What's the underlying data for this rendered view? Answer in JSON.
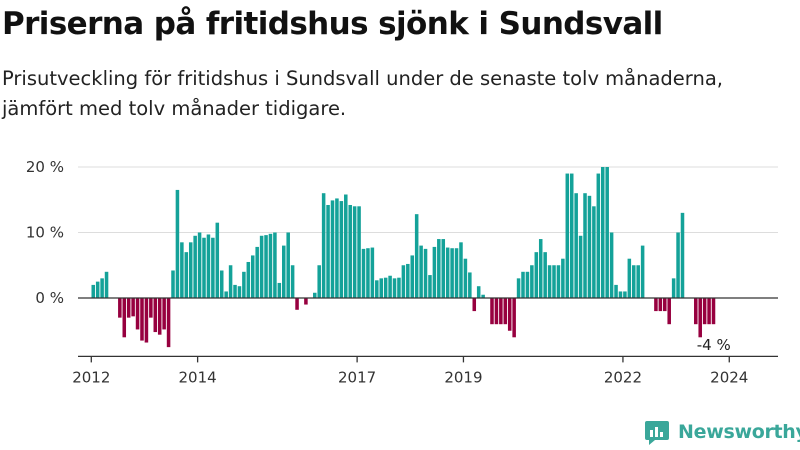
{
  "header": {
    "title": "Priserna på fritidshus sjönk i Sundsvall",
    "subtitle": "Prisutveckling för fritidshus i Sundsvall under de senaste tolv månaderna, jämfört med tolv månader tidigare."
  },
  "logo": {
    "name": "Newsworthy",
    "icon": "newsworthy-chart-icon"
  },
  "colors": {
    "positive": "#14a299",
    "negative": "#97003f",
    "grid": "#dddddd",
    "axis": "#333333",
    "text": "#333333"
  },
  "chart_data": {
    "type": "bar",
    "title": "Priserna på fritidshus sjönk i Sundsvall",
    "xlabel": "",
    "ylabel": "",
    "ylim": [
      -8,
      20
    ],
    "y_ticks": [
      0,
      10,
      20
    ],
    "y_tick_labels": [
      "0 %",
      "10 %",
      "20 %"
    ],
    "x_range": [
      "2011-10",
      "2024-12"
    ],
    "x_ticks": [
      "2012-01",
      "2014-01",
      "2017-01",
      "2019-01",
      "2022-01",
      "2024-01"
    ],
    "x_tick_labels": [
      "2012",
      "2014",
      "2017",
      "2019",
      "2022",
      "2024"
    ],
    "grid": true,
    "end_label": "-4 %",
    "series": [
      {
        "values": [
          {
            "x": "2012-01",
            "y": 2.0
          },
          {
            "x": "2012-02",
            "y": 2.5
          },
          {
            "x": "2012-03",
            "y": 3.0
          },
          {
            "x": "2012-04",
            "y": 4.0
          },
          {
            "x": "2012-07",
            "y": -3.0
          },
          {
            "x": "2012-08",
            "y": -6.0
          },
          {
            "x": "2012-09",
            "y": -3.0
          },
          {
            "x": "2012-10",
            "y": -2.8
          },
          {
            "x": "2012-11",
            "y": -4.8
          },
          {
            "x": "2012-12",
            "y": -6.5
          },
          {
            "x": "2013-01",
            "y": -6.8
          },
          {
            "x": "2013-02",
            "y": -3.0
          },
          {
            "x": "2013-03",
            "y": -5.2
          },
          {
            "x": "2013-04",
            "y": -5.6
          },
          {
            "x": "2013-05",
            "y": -4.8
          },
          {
            "x": "2013-06",
            "y": -7.5
          },
          {
            "x": "2013-07",
            "y": 4.2
          },
          {
            "x": "2013-08",
            "y": 16.5
          },
          {
            "x": "2013-09",
            "y": 8.5
          },
          {
            "x": "2013-10",
            "y": 7.0
          },
          {
            "x": "2013-11",
            "y": 8.5
          },
          {
            "x": "2013-12",
            "y": 9.5
          },
          {
            "x": "2014-01",
            "y": 10.0
          },
          {
            "x": "2014-02",
            "y": 9.2
          },
          {
            "x": "2014-03",
            "y": 9.7
          },
          {
            "x": "2014-04",
            "y": 9.2
          },
          {
            "x": "2014-05",
            "y": 11.5
          },
          {
            "x": "2014-06",
            "y": 4.2
          },
          {
            "x": "2014-07",
            "y": 1.0
          },
          {
            "x": "2014-08",
            "y": 5.0
          },
          {
            "x": "2014-09",
            "y": 2.0
          },
          {
            "x": "2014-10",
            "y": 1.8
          },
          {
            "x": "2014-11",
            "y": 4.0
          },
          {
            "x": "2014-12",
            "y": 5.5
          },
          {
            "x": "2015-01",
            "y": 6.5
          },
          {
            "x": "2015-02",
            "y": 7.8
          },
          {
            "x": "2015-03",
            "y": 9.5
          },
          {
            "x": "2015-04",
            "y": 9.6
          },
          {
            "x": "2015-05",
            "y": 9.8
          },
          {
            "x": "2015-06",
            "y": 10.0
          },
          {
            "x": "2015-07",
            "y": 2.3
          },
          {
            "x": "2015-08",
            "y": 8.0
          },
          {
            "x": "2015-09",
            "y": 10.0
          },
          {
            "x": "2015-10",
            "y": 5.0
          },
          {
            "x": "2015-11",
            "y": -1.8
          },
          {
            "x": "2016-01",
            "y": -1.0
          },
          {
            "x": "2016-03",
            "y": 0.8
          },
          {
            "x": "2016-04",
            "y": 5.0
          },
          {
            "x": "2016-05",
            "y": 16.0
          },
          {
            "x": "2016-06",
            "y": 14.2
          },
          {
            "x": "2016-07",
            "y": 14.9
          },
          {
            "x": "2016-08",
            "y": 15.2
          },
          {
            "x": "2016-09",
            "y": 14.8
          },
          {
            "x": "2016-10",
            "y": 15.8
          },
          {
            "x": "2016-11",
            "y": 14.2
          },
          {
            "x": "2016-12",
            "y": 14.0
          },
          {
            "x": "2017-01",
            "y": 14.0
          },
          {
            "x": "2017-02",
            "y": 7.5
          },
          {
            "x": "2017-03",
            "y": 7.6
          },
          {
            "x": "2017-04",
            "y": 7.7
          },
          {
            "x": "2017-05",
            "y": 2.7
          },
          {
            "x": "2017-06",
            "y": 3.0
          },
          {
            "x": "2017-07",
            "y": 3.1
          },
          {
            "x": "2017-08",
            "y": 3.4
          },
          {
            "x": "2017-09",
            "y": 3.0
          },
          {
            "x": "2017-10",
            "y": 3.1
          },
          {
            "x": "2017-11",
            "y": 5.0
          },
          {
            "x": "2017-12",
            "y": 5.2
          },
          {
            "x": "2018-01",
            "y": 6.5
          },
          {
            "x": "2018-02",
            "y": 12.8
          },
          {
            "x": "2018-03",
            "y": 8.0
          },
          {
            "x": "2018-04",
            "y": 7.5
          },
          {
            "x": "2018-05",
            "y": 3.5
          },
          {
            "x": "2018-06",
            "y": 7.8
          },
          {
            "x": "2018-07",
            "y": 9.0
          },
          {
            "x": "2018-08",
            "y": 9.0
          },
          {
            "x": "2018-09",
            "y": 7.7
          },
          {
            "x": "2018-10",
            "y": 7.6
          },
          {
            "x": "2018-11",
            "y": 7.6
          },
          {
            "x": "2018-12",
            "y": 8.5
          },
          {
            "x": "2019-01",
            "y": 6.0
          },
          {
            "x": "2019-02",
            "y": 3.9
          },
          {
            "x": "2019-03",
            "y": -2.0
          },
          {
            "x": "2019-04",
            "y": 1.8
          },
          {
            "x": "2019-05",
            "y": 0.5
          },
          {
            "x": "2019-07",
            "y": -4.0
          },
          {
            "x": "2019-08",
            "y": -4.0
          },
          {
            "x": "2019-09",
            "y": -4.0
          },
          {
            "x": "2019-10",
            "y": -4.0
          },
          {
            "x": "2019-11",
            "y": -5.0
          },
          {
            "x": "2019-12",
            "y": -6.0
          },
          {
            "x": "2020-01",
            "y": 3.0
          },
          {
            "x": "2020-02",
            "y": 4.0
          },
          {
            "x": "2020-03",
            "y": 4.0
          },
          {
            "x": "2020-04",
            "y": 5.0
          },
          {
            "x": "2020-05",
            "y": 7.0
          },
          {
            "x": "2020-06",
            "y": 9.0
          },
          {
            "x": "2020-07",
            "y": 7.0
          },
          {
            "x": "2020-08",
            "y": 5.0
          },
          {
            "x": "2020-09",
            "y": 5.0
          },
          {
            "x": "2020-10",
            "y": 5.0
          },
          {
            "x": "2020-11",
            "y": 6.0
          },
          {
            "x": "2020-12",
            "y": 19.0
          },
          {
            "x": "2021-01",
            "y": 19.0
          },
          {
            "x": "2021-02",
            "y": 16.0
          },
          {
            "x": "2021-03",
            "y": 9.5
          },
          {
            "x": "2021-04",
            "y": 16.0
          },
          {
            "x": "2021-05",
            "y": 15.6
          },
          {
            "x": "2021-06",
            "y": 14.0
          },
          {
            "x": "2021-07",
            "y": 19.0
          },
          {
            "x": "2021-08",
            "y": 20.0
          },
          {
            "x": "2021-09",
            "y": 20.0
          },
          {
            "x": "2021-10",
            "y": 10.0
          },
          {
            "x": "2021-11",
            "y": 2.0
          },
          {
            "x": "2021-12",
            "y": 1.0
          },
          {
            "x": "2022-01",
            "y": 1.0
          },
          {
            "x": "2022-02",
            "y": 6.0
          },
          {
            "x": "2022-03",
            "y": 5.0
          },
          {
            "x": "2022-04",
            "y": 5.0
          },
          {
            "x": "2022-05",
            "y": 8.0
          },
          {
            "x": "2022-08",
            "y": -2.0
          },
          {
            "x": "2022-09",
            "y": -2.0
          },
          {
            "x": "2022-10",
            "y": -2.0
          },
          {
            "x": "2022-11",
            "y": -4.0
          },
          {
            "x": "2022-12",
            "y": 3.0
          },
          {
            "x": "2023-01",
            "y": 10.0
          },
          {
            "x": "2023-02",
            "y": 13.0
          },
          {
            "x": "2023-05",
            "y": -4.0
          },
          {
            "x": "2023-06",
            "y": -6.0
          },
          {
            "x": "2023-07",
            "y": -4.0
          },
          {
            "x": "2023-08",
            "y": -4.0
          },
          {
            "x": "2023-09",
            "y": -4.0
          }
        ]
      }
    ]
  }
}
